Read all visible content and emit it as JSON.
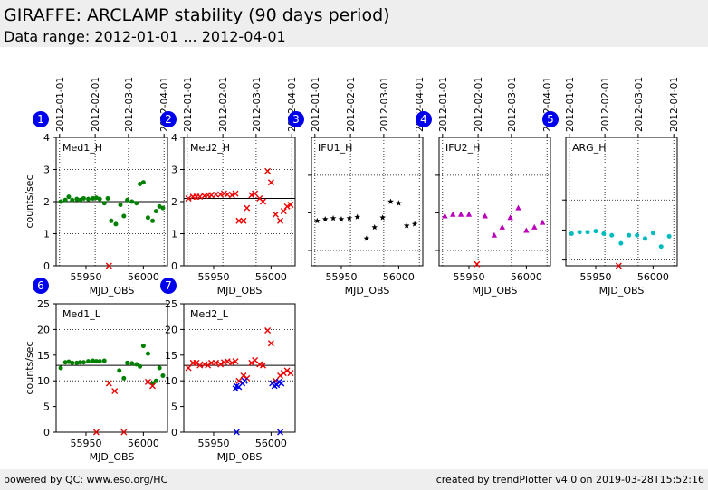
{
  "header": {
    "title": "GIRAFFE: ARCLAMP stability (90 days period)",
    "subtitle": "Data range: 2012-01-01 ... 2012-04-01"
  },
  "footer": {
    "left": "powered by QC: www.eso.org/HC",
    "right": "created by trendPlotter v4.0 on 2019-03-28T15:52:16"
  },
  "colors": {
    "badge": "#0000ee",
    "green": "#008000",
    "red": "#ee0000",
    "black": "#000000",
    "magenta": "#bb00bb",
    "cyan": "#00bbbb",
    "blue": "#0000ee"
  },
  "chart_data": [
    {
      "id": 1,
      "type": "scatter",
      "label": "Med1_H",
      "xlabel": "MJD_OBS",
      "ylabel": "counts/sec",
      "xlim": [
        55924,
        56021
      ],
      "ylim": [
        0,
        4
      ],
      "yticks": [
        0,
        1,
        2,
        3,
        4
      ],
      "xticks": [
        55950,
        56000
      ],
      "date_ticks": [
        "2012-01-01",
        "2012-02-01",
        "2012-03-01",
        "2012-04-01"
      ],
      "refline": 2.0,
      "dotted": [
        1.0,
        3.0
      ],
      "series": [
        {
          "marker": "dot",
          "color": "green",
          "x": [
            55928,
            55932,
            55935,
            55938,
            55942,
            55945,
            55948,
            55952,
            55956,
            55959,
            55962,
            55966,
            55969,
            55972,
            55976,
            55980,
            55983,
            55986,
            55990,
            55994,
            55997,
            56000,
            56004,
            56008,
            56011,
            56014,
            56017
          ],
          "y": [
            2.0,
            2.05,
            2.15,
            2.05,
            2.08,
            2.05,
            2.1,
            2.08,
            2.1,
            2.12,
            2.08,
            1.95,
            2.1,
            1.4,
            1.3,
            1.9,
            1.55,
            2.05,
            2.0,
            1.95,
            2.55,
            2.6,
            1.5,
            1.4,
            1.7,
            1.85,
            1.8
          ]
        },
        {
          "marker": "x",
          "color": "red",
          "x": [
            55970
          ],
          "y": [
            0.0
          ]
        }
      ]
    },
    {
      "id": 2,
      "type": "scatter",
      "label": "Med2_H",
      "xlabel": "MJD_OBS",
      "ylabel": "",
      "xlim": [
        55924,
        56021
      ],
      "ylim": [
        0,
        4
      ],
      "yticks": [
        0,
        1,
        2,
        3,
        4
      ],
      "xticks": [
        55950,
        56000
      ],
      "date_ticks": [
        "2012-01-01",
        "2012-02-01",
        "2012-03-01",
        "2012-04-01"
      ],
      "refline": 2.1,
      "dotted": [
        1.0,
        3.0
      ],
      "series": [
        {
          "marker": "x",
          "color": "red",
          "x": [
            55928,
            55932,
            55935,
            55938,
            55942,
            55945,
            55948,
            55952,
            55956,
            55959,
            55962,
            55966,
            55969,
            55972,
            55976,
            55979,
            55983,
            55986,
            55990,
            55993,
            55997,
            56000,
            56004,
            56008,
            56011,
            56014,
            56017
          ],
          "y": [
            2.1,
            2.15,
            2.15,
            2.15,
            2.18,
            2.2,
            2.2,
            2.22,
            2.22,
            2.25,
            2.22,
            2.2,
            2.25,
            1.4,
            1.4,
            1.8,
            2.2,
            2.25,
            2.1,
            2.0,
            2.95,
            2.6,
            1.6,
            1.4,
            1.7,
            1.85,
            1.9
          ]
        }
      ]
    },
    {
      "id": 3,
      "type": "scatter",
      "label": "IFU1_H",
      "xlabel": "MJD_OBS",
      "ylabel": "",
      "xlim": [
        55924,
        56021
      ],
      "ylim": [
        0,
        4
      ],
      "yticks": [],
      "xticks": [
        55950,
        56000
      ],
      "date_ticks": [
        "2012-01-01",
        "2012-02-01",
        "2012-03-01",
        "2012-04-01"
      ],
      "refline": null,
      "dotted": [
        0.48,
        2.82
      ],
      "series": [
        {
          "marker": "star",
          "color": "black",
          "x": [
            55929,
            55936,
            55943,
            55950,
            55957,
            55964,
            55972,
            55979,
            55986,
            55993,
            56000,
            56007,
            56014
          ],
          "y": [
            1.4,
            1.45,
            1.48,
            1.45,
            1.48,
            1.52,
            0.85,
            1.2,
            1.5,
            2.0,
            1.95,
            1.25,
            1.3
          ]
        }
      ]
    },
    {
      "id": 4,
      "type": "scatter",
      "label": "IFU2_H",
      "xlabel": "MJD_OBS",
      "ylabel": "",
      "xlim": [
        55924,
        56021
      ],
      "ylim": [
        0,
        4
      ],
      "yticks": [],
      "xticks": [
        55950,
        56000
      ],
      "date_ticks": [
        "2012-01-01",
        "2012-02-01",
        "2012-03-01",
        "2012-04-01"
      ],
      "refline": null,
      "dotted": [
        0.48,
        2.82
      ],
      "series": [
        {
          "marker": "triangle",
          "color": "magenta",
          "x": [
            55929,
            55936,
            55943,
            55950,
            55964,
            55972,
            55979,
            55986,
            55993,
            56000,
            56007,
            56014
          ],
          "y": [
            1.55,
            1.6,
            1.6,
            1.6,
            1.55,
            0.95,
            1.2,
            1.5,
            1.8,
            1.1,
            1.2,
            1.35
          ]
        },
        {
          "marker": "x",
          "color": "red",
          "x": [
            55957
          ],
          "y": [
            0.05
          ]
        }
      ]
    },
    {
      "id": 5,
      "type": "scatter",
      "label": "ARG_H",
      "xlabel": "MJD_OBS",
      "ylabel": "",
      "xlim": [
        55924,
        56021
      ],
      "ylim": [
        0,
        4
      ],
      "yticks": [],
      "xticks": [
        55950,
        56000
      ],
      "date_ticks": [
        "2012-01-01",
        "2012-02-01",
        "2012-03-01",
        "2012-04-01"
      ],
      "refline": null,
      "dotted": [
        0.18,
        2.05
      ],
      "series": [
        {
          "marker": "dot",
          "color": "cyan",
          "x": [
            55929,
            55936,
            55943,
            55950,
            55957,
            55964,
            55972,
            55979,
            55986,
            55993,
            56000,
            56007,
            56014
          ],
          "y": [
            1.0,
            1.05,
            1.05,
            1.08,
            1.0,
            0.95,
            0.7,
            0.95,
            0.95,
            0.85,
            1.02,
            0.6,
            0.92
          ]
        },
        {
          "marker": "x",
          "color": "red",
          "x": [
            55970
          ],
          "y": [
            0.0
          ]
        }
      ]
    },
    {
      "id": 6,
      "type": "scatter",
      "label": "Med1_L",
      "xlabel": "MJD_OBS",
      "ylabel": "counts/sec",
      "xlim": [
        55924,
        56021
      ],
      "ylim": [
        0,
        25
      ],
      "yticks": [
        0,
        5,
        10,
        15,
        20,
        25
      ],
      "xticks": [
        55950,
        56000
      ],
      "date_ticks": [],
      "refline": 13.0,
      "dotted": [
        10.0,
        20.0
      ],
      "series": [
        {
          "marker": "dot",
          "color": "green",
          "x": [
            55928,
            55932,
            55935,
            55938,
            55942,
            55945,
            55948,
            55952,
            55956,
            55959,
            55962,
            55966,
            55979,
            55983,
            55986,
            55990,
            55994,
            55997,
            56000,
            56004,
            56008,
            56011,
            56014,
            56017
          ],
          "y": [
            12.5,
            13.6,
            13.7,
            13.5,
            13.5,
            13.6,
            13.6,
            13.8,
            13.9,
            13.8,
            13.8,
            13.9,
            12.0,
            10.5,
            13.5,
            13.4,
            13.2,
            12.8,
            16.8,
            15.3,
            9.5,
            10.0,
            12.5,
            11.0
          ]
        },
        {
          "marker": "x",
          "color": "red",
          "x": [
            55959,
            55970,
            55975,
            55983,
            56004,
            56008
          ],
          "y": [
            0.0,
            9.5,
            8.0,
            0.0,
            9.8,
            9.0
          ]
        }
      ]
    },
    {
      "id": 7,
      "type": "scatter",
      "label": "Med2_L",
      "xlabel": "MJD_OBS",
      "ylabel": "",
      "xlim": [
        55924,
        56021
      ],
      "ylim": [
        0,
        25
      ],
      "yticks": [
        0,
        5,
        10,
        15,
        20,
        25
      ],
      "xticks": [
        55950,
        56000
      ],
      "date_ticks": [],
      "refline": 13.0,
      "dotted": [
        10.0,
        20.0
      ],
      "series": [
        {
          "marker": "x",
          "color": "red",
          "x": [
            55928,
            55932,
            55935,
            55938,
            55942,
            55945,
            55948,
            55952,
            55956,
            55959,
            55962,
            55966,
            55969,
            55972,
            55976,
            55979,
            55983,
            55986,
            55990,
            55993,
            55997,
            56000,
            56004,
            56008,
            56011,
            56014,
            56017
          ],
          "y": [
            12.5,
            13.5,
            13.5,
            13.0,
            13.2,
            13.0,
            13.5,
            13.5,
            13.2,
            13.6,
            13.8,
            13.5,
            13.8,
            10.0,
            11.0,
            10.5,
            13.5,
            14.0,
            13.2,
            13.0,
            19.8,
            17.3,
            10.0,
            11.0,
            11.5,
            12.0,
            11.5
          ]
        },
        {
          "marker": "x",
          "color": "blue",
          "x": [
            55969,
            55970,
            55972,
            55975,
            55977,
            56001,
            56003,
            56005,
            56007,
            56009
          ],
          "y": [
            8.5,
            9.0,
            8.8,
            9.5,
            10.0,
            9.5,
            9.0,
            9.2,
            9.8,
            9.5
          ]
        },
        {
          "marker": "x",
          "color": "blue",
          "x": [
            55970,
            56008
          ],
          "y": [
            0.0,
            0.0
          ]
        }
      ]
    }
  ]
}
